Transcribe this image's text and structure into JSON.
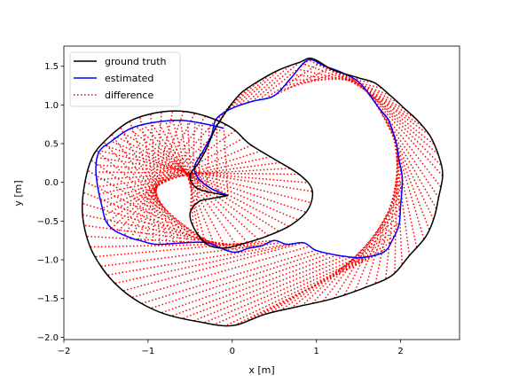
{
  "chart_data": {
    "type": "line",
    "title": "",
    "xlabel": "x [m]",
    "ylabel": "y [m]",
    "xlim": [
      -2.0,
      2.7
    ],
    "ylim": [
      -2.03,
      1.76
    ],
    "xticks": [
      -2,
      -1,
      0,
      1,
      2
    ],
    "xtick_labels": [
      "−2",
      "−1",
      "0",
      "1",
      "2"
    ],
    "yticks": [
      -2.0,
      -1.5,
      -1.0,
      -0.5,
      0.0,
      0.5,
      1.0,
      1.5
    ],
    "ytick_labels": [
      "−2.0",
      "−1.5",
      "−1.0",
      "−0.5",
      "0.0",
      "0.5",
      "1.0",
      "1.5"
    ],
    "grid": false,
    "legend_position": "top-left",
    "colors": {
      "ground_truth": "#000000",
      "estimated": "#0000ff",
      "difference": "#ff0000"
    },
    "series": [
      {
        "name": "ground truth",
        "style": "solid",
        "x": [
          -0.05,
          -0.3,
          -0.45,
          -0.5,
          -0.4,
          -0.3,
          -0.2,
          -0.05,
          0.1,
          0.3,
          0.55,
          0.8,
          0.95,
          1.2,
          1.5,
          1.7,
          1.9,
          2.05,
          2.2,
          2.35,
          2.45,
          2.5,
          2.45,
          2.4,
          2.3,
          2.1,
          1.9,
          1.6,
          1.2,
          0.8,
          0.4,
          0.0,
          -0.4,
          -0.8,
          -1.1,
          -1.35,
          -1.55,
          -1.7,
          -1.78,
          -1.75,
          -1.65,
          -1.45,
          -1.2,
          -0.9,
          -0.6,
          -0.3,
          0.0,
          0.2,
          0.5,
          0.8,
          0.95,
          0.9,
          0.7,
          0.4,
          0.1,
          -0.1,
          -0.3,
          -0.45,
          -0.5,
          -0.4,
          -0.2,
          -0.05
        ],
        "y": [
          -0.17,
          -0.12,
          -0.05,
          0.1,
          0.25,
          0.45,
          0.7,
          0.95,
          1.15,
          1.3,
          1.45,
          1.55,
          1.6,
          1.45,
          1.35,
          1.28,
          1.1,
          0.95,
          0.8,
          0.6,
          0.35,
          0.1,
          -0.2,
          -0.45,
          -0.7,
          -0.95,
          -1.2,
          -1.35,
          -1.5,
          -1.6,
          -1.7,
          -1.85,
          -1.8,
          -1.7,
          -1.55,
          -1.35,
          -1.1,
          -0.8,
          -0.4,
          0.0,
          0.35,
          0.6,
          0.8,
          0.9,
          0.92,
          0.85,
          0.7,
          0.5,
          0.3,
          0.1,
          -0.1,
          -0.35,
          -0.55,
          -0.7,
          -0.8,
          -0.85,
          -0.8,
          -0.6,
          -0.4,
          -0.25,
          -0.2,
          -0.17
        ]
      },
      {
        "name": "estimated",
        "style": "solid",
        "x": [
          -0.05,
          -0.25,
          -0.4,
          -0.45,
          -0.35,
          -0.25,
          -0.2,
          -0.1,
          0.05,
          0.25,
          0.5,
          0.7,
          0.9,
          1.1,
          1.3,
          1.5,
          1.65,
          1.75,
          1.85,
          1.9,
          1.95,
          1.98,
          2.02,
          2.0,
          1.98,
          1.9,
          1.8,
          1.55,
          1.3,
          1.0,
          0.85,
          0.65,
          0.5,
          0.35,
          0.2,
          0.0,
          -0.3,
          -0.55,
          -0.9,
          -1.1,
          -1.2,
          -1.4,
          -1.5,
          -1.55,
          -1.6,
          -1.62,
          -1.58,
          -1.45,
          -1.2,
          -0.9,
          -0.6,
          -0.3,
          -0.1
        ],
        "y": [
          -0.17,
          -0.08,
          0.05,
          0.2,
          0.4,
          0.6,
          0.8,
          0.9,
          0.98,
          1.05,
          1.12,
          1.35,
          1.58,
          1.5,
          1.42,
          1.3,
          1.1,
          0.95,
          0.82,
          0.68,
          0.5,
          0.3,
          0.05,
          -0.3,
          -0.55,
          -0.75,
          -0.9,
          -0.97,
          -0.95,
          -0.88,
          -0.78,
          -0.8,
          -0.75,
          -0.82,
          -0.85,
          -0.9,
          -0.78,
          -0.78,
          -0.8,
          -0.75,
          -0.72,
          -0.62,
          -0.5,
          -0.3,
          -0.05,
          0.2,
          0.4,
          0.52,
          0.7,
          0.78,
          0.8,
          0.75,
          0.7
        ]
      },
      {
        "name": "difference",
        "style": "dotted",
        "x": [],
        "y": []
      }
    ]
  }
}
